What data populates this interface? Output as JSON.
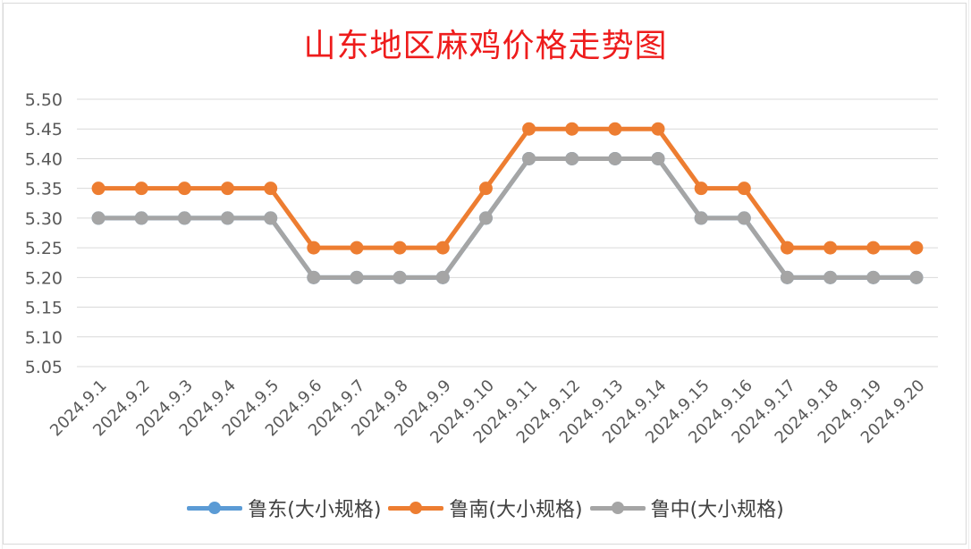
{
  "chart_data": {
    "type": "line",
    "title": "山东地区麻鸡价格走势图",
    "categories": [
      "2024.9.1",
      "2024.9.2",
      "2024.9.3",
      "2024.9.4",
      "2024.9.5",
      "2024.9.6",
      "2024.9.7",
      "2024.9.8",
      "2024.9.9",
      "2024.9.10",
      "2024.9.11",
      "2024.9.12",
      "2024.9.13",
      "2024.9.14",
      "2024.9.15",
      "2024.9.16",
      "2024.9.17",
      "2024.9.18",
      "2024.9.19",
      "2024.9.20"
    ],
    "y_ticks": [
      "5.05",
      "5.10",
      "5.15",
      "5.20",
      "5.25",
      "5.30",
      "5.35",
      "5.40",
      "5.45",
      "5.50"
    ],
    "ylim": [
      5.05,
      5.5
    ],
    "grid": true,
    "legend_position": "bottom",
    "series": [
      {
        "name": "鲁东(大小规格)",
        "color": "#5b9bd5",
        "values": [
          5.3,
          5.3,
          5.3,
          5.3,
          5.3,
          5.2,
          5.2,
          5.2,
          5.2,
          5.3,
          5.4,
          5.4,
          5.4,
          5.4,
          5.3,
          5.3,
          5.2,
          5.2,
          5.2,
          5.2
        ]
      },
      {
        "name": "鲁南(大小规格)",
        "color": "#ed7d31",
        "values": [
          5.35,
          5.35,
          5.35,
          5.35,
          5.35,
          5.25,
          5.25,
          5.25,
          5.25,
          5.35,
          5.45,
          5.45,
          5.45,
          5.45,
          5.35,
          5.35,
          5.25,
          5.25,
          5.25,
          5.25
        ]
      },
      {
        "name": "鲁中(大小规格)",
        "color": "#a5a5a5",
        "values": [
          5.3,
          5.3,
          5.3,
          5.3,
          5.3,
          5.2,
          5.2,
          5.2,
          5.2,
          5.3,
          5.4,
          5.4,
          5.4,
          5.4,
          5.3,
          5.3,
          5.2,
          5.2,
          5.2,
          5.2
        ]
      }
    ]
  }
}
